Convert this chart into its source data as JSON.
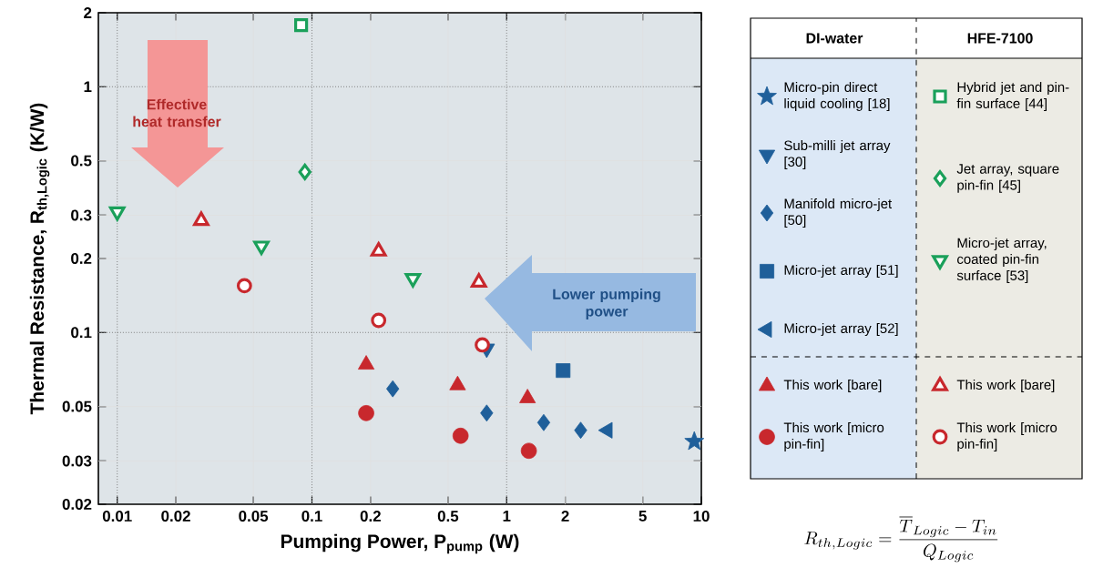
{
  "chart_data": {
    "type": "scatter",
    "xlabel": "Pumping Power, P$_{pump}$ (W)",
    "ylabel": "Thermal Resistance, R$_{th,Logic}$ (K/W)",
    "log": "xy",
    "grid": true,
    "legend": "right",
    "xlim": [
      0.008,
      10
    ],
    "ylim": [
      0.02,
      2
    ],
    "xticks": [
      0.01,
      0.02,
      0.05,
      0.1,
      0.2,
      0.5,
      1,
      2,
      5,
      10
    ],
    "yticks": [
      0.02,
      0.03,
      0.05,
      0.1,
      0.2,
      0.3,
      0.5,
      1,
      2
    ],
    "annotations": [
      "Effective heat transfer",
      "Lower pumping power",
      "DI-water",
      "HFE-7100",
      "R_{th,Logic} = \\frac{\\overline{T}_{Logic} - T_{in}}{Q_{Logic}}"
    ],
    "series": [
      {
        "name": "Micro-pin direct liquid cooling [18]",
        "color": "#1f5f9a",
        "marker": "star",
        "x": [
          9.2
        ],
        "values": [
          0.036
        ]
      },
      {
        "name": "Sub-milli jet array [30]",
        "color": "#1f5f9a",
        "marker": "triangle-down",
        "x": [
          0.79
        ],
        "values": [
          0.086
        ]
      },
      {
        "name": "Manifold micro-jet [50]",
        "color": "#1f5f9a",
        "marker": "diamond",
        "x": [
          0.26,
          0.79,
          1.55,
          2.4
        ],
        "values": [
          0.059,
          0.047,
          0.043,
          0.04
        ]
      },
      {
        "name": "Micro-jet array [51]",
        "color": "#1f5f9a",
        "marker": "square",
        "x": [
          1.95
        ],
        "values": [
          0.07
        ]
      },
      {
        "name": "Micro-jet array [52]",
        "color": "#1f5f9a",
        "marker": "triangle-left",
        "x": [
          3.3
        ],
        "values": [
          0.04
        ]
      },
      {
        "name": "This work [bare]",
        "color": "#c8282d",
        "marker": "triangle",
        "x": [
          0.19,
          0.56,
          1.28
        ],
        "values": [
          0.074,
          0.061,
          0.054
        ]
      },
      {
        "name": "This work [micro pin-fin]",
        "color": "#c8282d",
        "marker": "circle",
        "x": [
          0.19,
          0.58,
          1.3
        ],
        "values": [
          0.047,
          0.038,
          0.033
        ]
      },
      {
        "name": "Hybrid jet and pin-fin surface [44]",
        "color": "#1aa05a",
        "marker": "square-open",
        "x": [
          0.088
        ],
        "values": [
          1.78
        ]
      },
      {
        "name": "Jet array, square pin-fin [45]",
        "color": "#1aa05a",
        "marker": "diamond-open",
        "x": [
          0.092
        ],
        "values": [
          0.45
        ]
      },
      {
        "name": "Micro-jet array, coated pin-fin surface [53]",
        "color": "#1aa05a",
        "marker": "triangle-down-open",
        "x": [
          0.01,
          0.055,
          0.33
        ],
        "values": [
          0.31,
          0.225,
          0.166
        ]
      },
      {
        "name": "This work [bare]",
        "color": "#c8282d",
        "marker": "triangle-open",
        "x": [
          0.027,
          0.22,
          0.72
        ],
        "values": [
          0.285,
          0.214,
          0.16
        ]
      },
      {
        "name": "This work [micro pin-fin]",
        "color": "#c8282d",
        "marker": "circle-open",
        "x": [
          0.045,
          0.22,
          0.75
        ],
        "values": [
          0.155,
          0.112,
          0.089
        ]
      }
    ]
  }
}
